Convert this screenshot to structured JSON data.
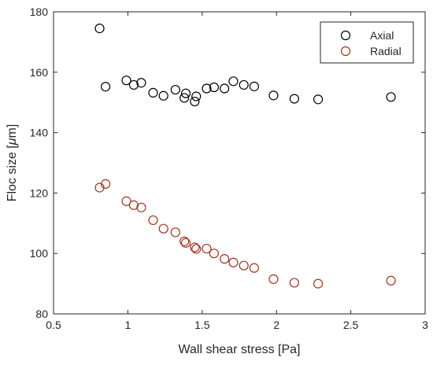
{
  "chart_data": {
    "type": "scatter",
    "title": "",
    "xlabel": "Wall shear stress [Pa]",
    "ylabel_prefix": "Floc size [",
    "ylabel_symbol": "μ",
    "ylabel_suffix": "m]",
    "xlim": [
      0.5,
      3
    ],
    "ylim": [
      80,
      180
    ],
    "xticks": [
      0.5,
      1,
      1.5,
      2,
      2.5,
      3
    ],
    "xtick_labels": [
      "0.5",
      "1",
      "1.5",
      "2",
      "2.5",
      "3"
    ],
    "yticks": [
      80,
      100,
      120,
      140,
      160,
      180
    ],
    "ytick_labels": [
      "80",
      "100",
      "120",
      "140",
      "160",
      "180"
    ],
    "grid": false,
    "legend_position": "top-right",
    "series": [
      {
        "name": "Axial",
        "color": "#000000",
        "marker": "open-circle",
        "x": [
          0.81,
          0.85,
          0.99,
          1.04,
          1.09,
          1.17,
          1.24,
          1.32,
          1.38,
          1.39,
          1.45,
          1.46,
          1.53,
          1.58,
          1.65,
          1.71,
          1.78,
          1.85,
          1.98,
          2.12,
          2.28,
          2.77
        ],
        "y": [
          174.5,
          155.2,
          157.3,
          155.8,
          156.5,
          153.2,
          152.2,
          154.2,
          151.5,
          153.0,
          150.3,
          152.0,
          154.6,
          155.0,
          154.6,
          157.0,
          155.8,
          155.3,
          152.3,
          151.2,
          151.0,
          151.8
        ]
      },
      {
        "name": "Radial",
        "color": "#a3321d",
        "marker": "open-circle",
        "x": [
          0.81,
          0.85,
          0.99,
          1.04,
          1.09,
          1.17,
          1.24,
          1.32,
          1.38,
          1.39,
          1.45,
          1.46,
          1.53,
          1.58,
          1.65,
          1.71,
          1.78,
          1.85,
          1.98,
          2.12,
          2.28,
          2.77
        ],
        "y": [
          121.8,
          123.0,
          117.3,
          116.0,
          115.2,
          111.0,
          108.2,
          107.0,
          104.0,
          103.5,
          102.0,
          101.5,
          101.6,
          100.0,
          98.2,
          97.0,
          96.0,
          95.2,
          91.5,
          90.3,
          90.0,
          91.0
        ]
      }
    ]
  }
}
